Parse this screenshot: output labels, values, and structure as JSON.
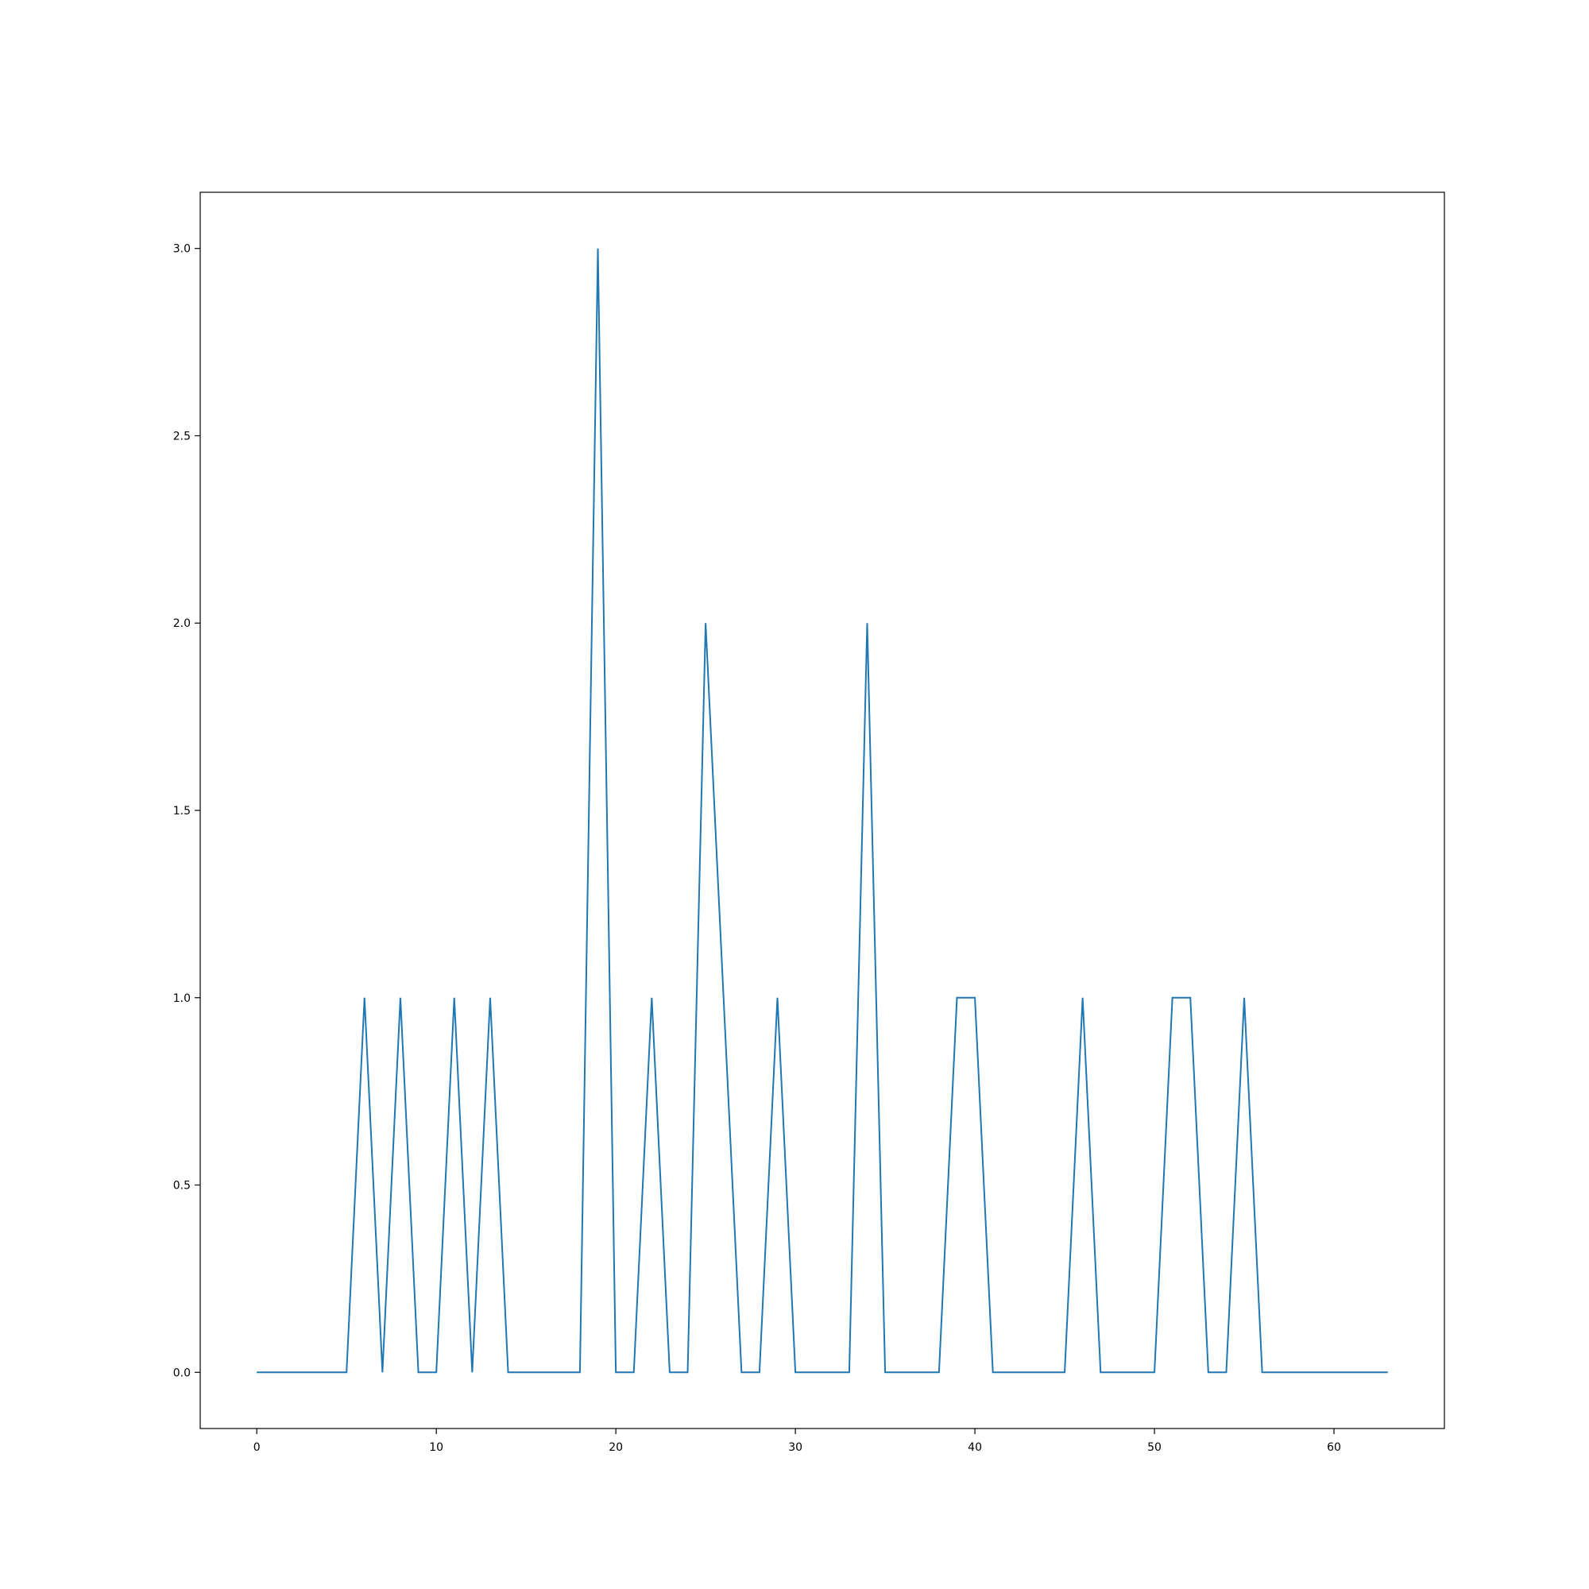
{
  "chart_data": {
    "type": "line",
    "title": "",
    "xlabel": "",
    "ylabel": "",
    "xlim": [
      -3.15,
      66.15
    ],
    "ylim": [
      -0.15,
      3.15
    ],
    "x_ticks": [
      0,
      10,
      20,
      30,
      40,
      50,
      60
    ],
    "y_ticks": [
      0.0,
      0.5,
      1.0,
      1.5,
      2.0,
      2.5,
      3.0
    ],
    "x_tick_labels": [
      "0",
      "10",
      "20",
      "30",
      "40",
      "50",
      "60"
    ],
    "y_tick_labels": [
      "0.0",
      "0.5",
      "1.0",
      "1.5",
      "2.0",
      "2.5",
      "3.0"
    ],
    "grid": false,
    "legend": "none",
    "series": [
      {
        "color": "#1f77b4",
        "x": [
          0,
          1,
          2,
          3,
          4,
          5,
          6,
          7,
          8,
          9,
          10,
          11,
          12,
          13,
          14,
          15,
          16,
          17,
          18,
          19,
          20,
          21,
          22,
          23,
          24,
          25,
          26,
          27,
          28,
          29,
          30,
          31,
          32,
          33,
          34,
          35,
          36,
          37,
          38,
          39,
          40,
          41,
          42,
          43,
          44,
          45,
          46,
          47,
          48,
          49,
          50,
          51,
          52,
          53,
          54,
          55,
          56,
          57,
          58,
          59,
          60,
          61,
          62,
          63
        ],
        "y": [
          0,
          0,
          0,
          0,
          0,
          0,
          1,
          0,
          1,
          0,
          0,
          1,
          0,
          1,
          0,
          0,
          0,
          0,
          0,
          3,
          0,
          0,
          1,
          0,
          0,
          2,
          1,
          0,
          0,
          1,
          0,
          0,
          0,
          0,
          2,
          0,
          0,
          0,
          0,
          1,
          1,
          0,
          0,
          0,
          0,
          0,
          1,
          0,
          0,
          0,
          0,
          1,
          1,
          0,
          0,
          1,
          0,
          0,
          0,
          0,
          0,
          0,
          0,
          0
        ]
      }
    ]
  }
}
